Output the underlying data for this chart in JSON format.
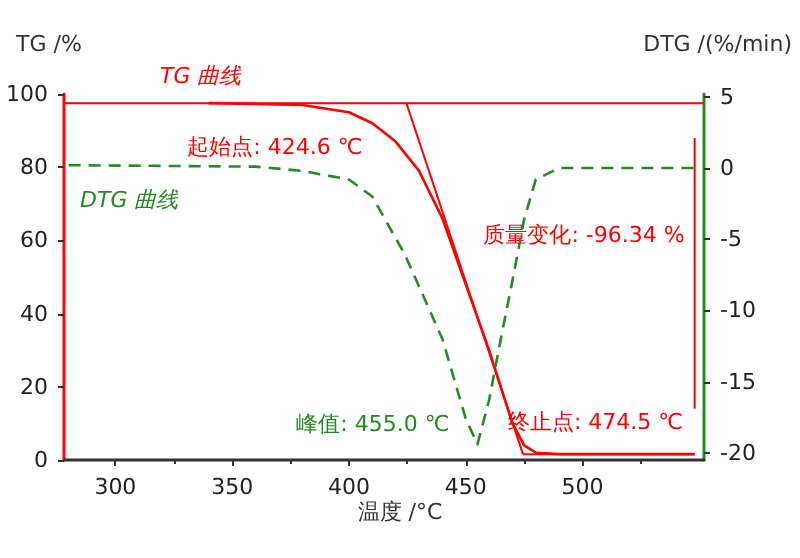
{
  "chart_data": {
    "type": "line",
    "xlabel": "温度 /°C",
    "ylabel": "TG /%",
    "y2label": "DTG /(%/min)",
    "xlim": [
      278,
      552
    ],
    "xticks": [
      300,
      350,
      400,
      450,
      500
    ],
    "ylim": [
      0,
      100
    ],
    "yticks": [
      0,
      20,
      40,
      60,
      80,
      100
    ],
    "y2lim": [
      -20.5,
      5.2
    ],
    "y2ticks": [
      -20,
      -15,
      -10,
      -5,
      0,
      5
    ],
    "marker": "none",
    "grid": false,
    "legend": false,
    "series": [
      {
        "name": "TG 曲线",
        "color": "#ff0000",
        "line_style": "solid",
        "x": [
          340,
          380,
          400,
          410,
          420,
          430,
          440,
          450,
          455,
          460,
          465,
          470,
          475,
          480,
          490,
          520,
          548
        ],
        "values": [
          97.5,
          97,
          95,
          92,
          87,
          79,
          66,
          48,
          39,
          30,
          20,
          10,
          4,
          2,
          1.6,
          1.6,
          1.6
        ]
      },
      {
        "name": "DTG 曲线",
        "color": "#228b22",
        "line_style": "dashed",
        "axis": "y2",
        "x": [
          280,
          360,
          380,
          400,
          410,
          424,
          440,
          450,
          455,
          460,
          465,
          470,
          475,
          480,
          490,
          548
        ],
        "values": [
          0.2,
          0.1,
          -0.2,
          -0.8,
          -2,
          -6.1,
          -12,
          -17.6,
          -19.4,
          -16.3,
          -12,
          -7.9,
          -3.6,
          -0.8,
          0,
          0
        ]
      },
      {
        "color": "#ff0000",
        "line_style": "solid",
        "x": [
          278,
          552
        ],
        "values": [
          97.5,
          97.5
        ]
      },
      {
        "color": "#ff0000",
        "line_style": "solid",
        "x": [
          424.6,
          474.5
        ],
        "values": [
          97.5,
          1.6
        ]
      },
      {
        "color": "#ff0000",
        "line_style": "solid",
        "x": [
          474.5,
          548
        ],
        "values": [
          1.6,
          1.6
        ]
      },
      {
        "color": "#ff0000",
        "line_style": "solid",
        "x": [
          548,
          548
        ],
        "values": [
          88,
          14
        ]
      }
    ],
    "annotations": [
      {
        "text": "起始点: 424.6 ℃",
        "x": 424.6,
        "y": 97.5
      },
      "峰值: 455.0 ℃",
      {
        "text": "终止点: 474.5 ℃",
        "x": 474.5,
        "y": 1.6
      },
      {
        "text": "质量变化: -96.34 %",
        "x": 548,
        "y": 50
      }
    ]
  }
}
